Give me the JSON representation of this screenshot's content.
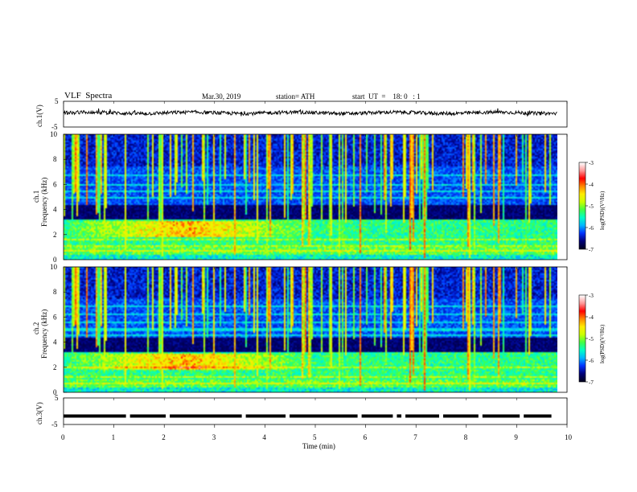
{
  "header": {
    "title": "VLF  Spectra",
    "date": "Mar.30, 2019",
    "station": "station= ATH",
    "start": "start  UT  =    18: 0   : 1"
  },
  "chart_data": [
    {
      "type": "line",
      "panel": "ch1-voltage",
      "ylabel": "ch.1(V)",
      "yticks": [
        "5",
        "-5"
      ],
      "ylim": [
        -5,
        5
      ],
      "xlim": [
        0,
        10
      ],
      "x_data_end": 9.8,
      "approx_level": 0.5,
      "color": "#000000"
    },
    {
      "type": "heatmap",
      "panel": "ch1-spectrogram",
      "ylabel": "Frequency (kHz)",
      "channel_label": "ch.1",
      "yticks": [
        "10",
        "8",
        "6",
        "4",
        "2",
        "0"
      ],
      "ylim": [
        0,
        10
      ],
      "xlim": [
        0,
        10
      ],
      "colorbar": {
        "label": "log(PSD)(V²/Hz)",
        "ticks": [
          "-3",
          "-4",
          "-5",
          "-6",
          "-7"
        ],
        "range": [
          -7,
          -3
        ]
      }
    },
    {
      "type": "heatmap",
      "panel": "ch2-spectrogram",
      "ylabel": "Frequency (kHz)",
      "channel_label": "ch.2",
      "yticks": [
        "10",
        "8",
        "6",
        "4",
        "2",
        "0"
      ],
      "ylim": [
        0,
        10
      ],
      "xlim": [
        0,
        10
      ],
      "colorbar": {
        "label": "log(PSD)(V²/Hz)",
        "ticks": [
          "-3",
          "-4",
          "-5",
          "-6",
          "-7"
        ],
        "range": [
          -7,
          -3
        ]
      }
    },
    {
      "type": "line",
      "panel": "ch3-voltage",
      "ylabel": "ch.3(V)",
      "yticks": [
        "5",
        "-5"
      ],
      "ylim": [
        -5,
        5
      ],
      "xlim": [
        0,
        10
      ],
      "x_data_end": 9.8,
      "approx_level": -1.8,
      "gap_times": [
        1.28,
        2.07,
        3.58,
        4.45,
        5.88,
        6.58,
        6.75,
        7.5,
        8.28,
        9.1,
        9.73
      ],
      "color": "#000000"
    }
  ],
  "xaxis": {
    "label": "Time  (min)",
    "ticks": [
      "0",
      "1",
      "2",
      "3",
      "4",
      "5",
      "6",
      "7",
      "8",
      "9",
      "10"
    ]
  },
  "colors": {
    "scale": [
      "#000020",
      "#00007a",
      "#0033ff",
      "#00b8ff",
      "#00ffc8",
      "#44ff44",
      "#ccff00",
      "#ffee00",
      "#ff8800",
      "#ff0000",
      "#ff9999",
      "#ffffff"
    ]
  }
}
